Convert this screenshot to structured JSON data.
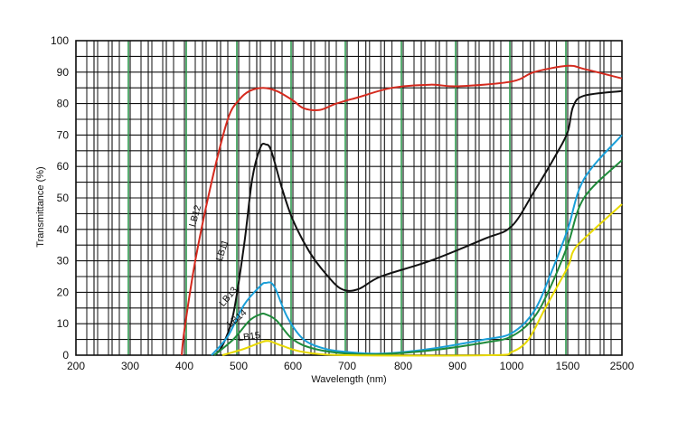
{
  "chart_data": {
    "type": "line",
    "xlabel": "Wavelength (nm)",
    "ylabel": "Transmittance (%)",
    "ylim": [
      0,
      100
    ],
    "xlim": [
      200,
      2500
    ],
    "x_ticks": [
      "200",
      "300",
      "400",
      "500",
      "600",
      "700",
      "800",
      "900",
      "1000",
      "1500",
      "2500"
    ],
    "y_ticks": [
      "0",
      "10",
      "20",
      "30",
      "40",
      "50",
      "60",
      "70",
      "80",
      "90",
      "100"
    ],
    "grid": true,
    "legend": "inline labels",
    "series": [
      {
        "name": "LB12",
        "color": "#d42a1e",
        "points": [
          [
            395,
            0
          ],
          [
            400,
            8
          ],
          [
            420,
            30
          ],
          [
            450,
            55
          ],
          [
            480,
            75
          ],
          [
            500,
            81
          ],
          [
            520,
            84
          ],
          [
            545,
            85
          ],
          [
            570,
            84
          ],
          [
            600,
            81
          ],
          [
            620,
            78.5
          ],
          [
            650,
            78
          ],
          [
            680,
            80
          ],
          [
            720,
            82
          ],
          [
            780,
            85
          ],
          [
            850,
            86
          ],
          [
            900,
            85.5
          ],
          [
            1000,
            87
          ],
          [
            1200,
            90
          ],
          [
            1500,
            92
          ],
          [
            1800,
            91
          ],
          [
            2500,
            88
          ]
        ]
      },
      {
        "name": "LB11",
        "color": "#111111",
        "points": [
          [
            455,
            0
          ],
          [
            470,
            3
          ],
          [
            490,
            13
          ],
          [
            510,
            35
          ],
          [
            525,
            56
          ],
          [
            540,
            66
          ],
          [
            550,
            67
          ],
          [
            560,
            65
          ],
          [
            580,
            53
          ],
          [
            600,
            43
          ],
          [
            630,
            33
          ],
          [
            660,
            26
          ],
          [
            690,
            21
          ],
          [
            720,
            21
          ],
          [
            760,
            25
          ],
          [
            850,
            30
          ],
          [
            950,
            37
          ],
          [
            1000,
            41
          ],
          [
            1200,
            52
          ],
          [
            1400,
            64
          ],
          [
            1500,
            71
          ],
          [
            1600,
            79
          ],
          [
            1800,
            82.5
          ],
          [
            2500,
            84
          ]
        ]
      },
      {
        "name": "LB13",
        "color": "#1a9fd8",
        "points": [
          [
            450,
            0
          ],
          [
            480,
            6
          ],
          [
            510,
            16
          ],
          [
            540,
            22
          ],
          [
            550,
            23
          ],
          [
            565,
            22
          ],
          [
            590,
            12
          ],
          [
            620,
            5
          ],
          [
            660,
            2
          ],
          [
            700,
            1
          ],
          [
            760,
            0.5
          ],
          [
            850,
            2
          ],
          [
            950,
            5
          ],
          [
            1000,
            7
          ],
          [
            1200,
            14
          ],
          [
            1350,
            26
          ],
          [
            1500,
            40
          ],
          [
            1800,
            56
          ],
          [
            2500,
            70
          ]
        ]
      },
      {
        "name": "LB14",
        "color": "#1e8a3a",
        "points": [
          [
            455,
            0
          ],
          [
            490,
            5
          ],
          [
            520,
            11
          ],
          [
            540,
            13
          ],
          [
            550,
            13
          ],
          [
            570,
            11
          ],
          [
            600,
            5
          ],
          [
            640,
            2
          ],
          [
            700,
            0.5
          ],
          [
            760,
            0.3
          ],
          [
            850,
            1.5
          ],
          [
            950,
            4
          ],
          [
            1000,
            6
          ],
          [
            1200,
            12
          ],
          [
            1350,
            22
          ],
          [
            1500,
            35
          ],
          [
            1800,
            50
          ],
          [
            2500,
            62
          ]
        ]
      },
      {
        "name": "LB15",
        "color": "#e8d900",
        "points": [
          [
            470,
            0
          ],
          [
            510,
            2
          ],
          [
            540,
            4
          ],
          [
            555,
            4.5
          ],
          [
            580,
            3
          ],
          [
            620,
            1
          ],
          [
            700,
            0
          ],
          [
            960,
            0
          ],
          [
            1000,
            1
          ],
          [
            1150,
            5
          ],
          [
            1300,
            15
          ],
          [
            1500,
            28
          ],
          [
            1600,
            33
          ],
          [
            1800,
            37
          ],
          [
            2500,
            48
          ]
        ]
      }
    ]
  }
}
